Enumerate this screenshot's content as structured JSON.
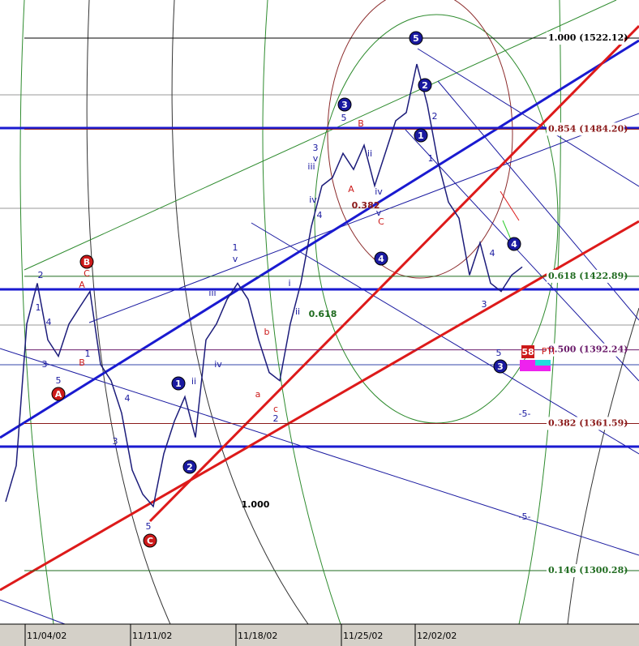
{
  "chart_data": {
    "type": "line",
    "color": "#1c1c7a",
    "ylim": [
      1278,
      1538
    ],
    "categories": [
      null,
      null,
      "11/04/02",
      null,
      null,
      null,
      null,
      null,
      null,
      null,
      null,
      null,
      "11/11/02",
      null,
      null,
      null,
      null,
      null,
      null,
      null,
      null,
      null,
      "11/18/02",
      null,
      null,
      null,
      null,
      null,
      null,
      null,
      null,
      null,
      "11/25/02",
      null,
      null,
      null,
      null,
      null,
      null,
      "12/02/02",
      null,
      null,
      null,
      null,
      null,
      null,
      null,
      null,
      null,
      null,
      null,
      null,
      null,
      null,
      null,
      null,
      null,
      null,
      null,
      null
    ],
    "values": [
      1329,
      1344,
      1403,
      1420,
      1396.4,
      1389.6,
      1403,
      1409.9,
      1416.6,
      1386.2,
      1379.4,
      1365.9,
      1342.2,
      1332.1,
      1327,
      1349,
      1362.5,
      1372.7,
      1355.8,
      1396.4,
      1403.1,
      1413.3,
      1420,
      1413.3,
      1396.4,
      1382.8,
      1379.4,
      1403.1,
      1420,
      1443.7,
      1460.6,
      1464,
      1474.1,
      1467.4,
      1477.5,
      1460.6,
      1474.1,
      1487.7,
      1491.1,
      1511.3,
      1494.4,
      1470.8,
      1453.8,
      1447.1,
      1423.4,
      1436.9,
      1420,
      1416.6,
      1423.4,
      1426.8,
      null,
      null,
      null,
      null,
      null,
      null,
      null,
      null,
      null,
      null
    ],
    "fib_levels": [
      {
        "value": 1522.12,
        "label": "1.000 (1522.12)",
        "color": "#000000"
      },
      {
        "value": 1484.2,
        "label": "0.854 (1484.20)",
        "color": "#8b1a1a"
      },
      {
        "value": 1422.89,
        "label": "0.618 (1422.89)",
        "color": "#1f6b1f"
      },
      {
        "value": 1392.24,
        "label": "0.500 (1392.24)",
        "color": "#6a1a6a"
      },
      {
        "value": 1361.59,
        "label": "0.382 (1361.59)",
        "color": "#8b1a1a"
      },
      {
        "value": 1300.28,
        "label": "0.146 (1300.28)",
        "color": "#1f6b1f"
      }
    ],
    "wave_labels": [
      {
        "text": "5",
        "color": "#1a1aa0",
        "circle": true
      },
      {
        "text": "2",
        "color": "#1a1aa0",
        "circle": true
      },
      {
        "text": "3",
        "color": "#1a1aa0",
        "circle": true
      },
      {
        "text": "1",
        "color": "#1a1aa0",
        "circle": true
      },
      {
        "text": "4",
        "color": "#1a1aa0",
        "circle": true
      },
      {
        "text": "4",
        "color": "#1a1aa0",
        "circle": true
      },
      {
        "text": "3",
        "color": "#1a1aa0",
        "circle": true
      },
      {
        "text": "1",
        "color": "#1a1aa0",
        "circle": true
      },
      {
        "text": "2",
        "color": "#1a1aa0",
        "circle": true
      },
      {
        "text": "B",
        "color": "#cc1a1a",
        "circle": true
      },
      {
        "text": "A",
        "color": "#cc1a1a",
        "circle": true
      },
      {
        "text": "C",
        "color": "#cc1a1a",
        "circle": true
      },
      {
        "text": "58",
        "color": "#cc1a1a",
        "circle": false
      },
      {
        "text": "PTI",
        "color": "#cc1a1a",
        "circle": false
      },
      {
        "text": "5",
        "color": "#1a1aa0",
        "circle": false
      },
      {
        "text": "3",
        "color": "#1a1aa0",
        "circle": false
      },
      {
        "text": "v",
        "color": "#1a1aa0",
        "circle": false
      },
      {
        "text": "iii",
        "color": "#1a1aa0",
        "circle": false
      },
      {
        "text": "iv",
        "color": "#1a1aa0",
        "circle": false
      },
      {
        "text": "1",
        "color": "#1a1aa0",
        "circle": false
      },
      {
        "text": "v",
        "color": "#1a1aa0",
        "circle": false
      },
      {
        "text": "iii",
        "color": "#1a1aa0",
        "circle": false
      },
      {
        "text": "iv",
        "color": "#1a1aa0",
        "circle": false
      },
      {
        "text": "ii",
        "color": "#1a1aa0",
        "circle": false
      },
      {
        "text": "i",
        "color": "#1a1aa0",
        "circle": false
      },
      {
        "text": "ii",
        "color": "#1a1aa0",
        "circle": false
      },
      {
        "text": "3",
        "color": "#1a1aa0",
        "circle": false
      },
      {
        "text": "4",
        "color": "#1a1aa0",
        "circle": false
      },
      {
        "text": "5",
        "color": "#1a1aa0",
        "circle": false
      },
      {
        "text": "5",
        "color": "#1a1aa0",
        "circle": false
      },
      {
        "text": "3",
        "color": "#1a1aa0",
        "circle": false
      },
      {
        "text": "4",
        "color": "#1a1aa0",
        "circle": false
      },
      {
        "text": "1",
        "color": "#1a1aa0",
        "circle": false
      },
      {
        "text": "2",
        "color": "#1a1aa0",
        "circle": false
      },
      {
        "text": "1",
        "color": "#1a1aa0",
        "circle": false
      },
      {
        "text": "ii",
        "color": "#1a1aa0",
        "circle": false
      },
      {
        "text": "iv",
        "color": "#1a1aa0",
        "circle": false
      },
      {
        "text": "v",
        "color": "#1a1aa0",
        "circle": false
      },
      {
        "text": "1",
        "color": "#1a1aa0",
        "circle": false
      },
      {
        "text": "2",
        "color": "#1a1aa0",
        "circle": false
      },
      {
        "text": "4",
        "color": "#1a1aa0",
        "circle": false
      },
      {
        "text": "3",
        "color": "#1a1aa0",
        "circle": false
      },
      {
        "text": "5",
        "color": "#1a1aa0",
        "circle": false
      },
      {
        "text": "4",
        "color": "#1a1aa0",
        "circle": false
      },
      {
        "text": "A",
        "color": "#cc1a1a",
        "circle": false
      },
      {
        "text": "B",
        "color": "#cc1a1a",
        "circle": false
      },
      {
        "text": "C",
        "color": "#cc1a1a",
        "circle": false
      },
      {
        "text": "A",
        "color": "#cc1a1a",
        "circle": false
      },
      {
        "text": "C",
        "color": "#cc1a1a",
        "circle": false
      },
      {
        "text": "B",
        "color": "#cc1a1a",
        "circle": false
      },
      {
        "text": "a",
        "color": "#cc1a1a",
        "circle": false
      },
      {
        "text": "b",
        "color": "#cc1a1a",
        "circle": false
      },
      {
        "text": "c",
        "color": "#cc1a1a",
        "circle": false
      },
      {
        "text": "2",
        "color": "#1a1aa0",
        "circle": false
      },
      {
        "text": "0.618",
        "color": "#1f6b1f",
        "circle": false
      },
      {
        "text": "0.382",
        "color": "#8b1a1a",
        "circle": false
      },
      {
        "text": "1.000",
        "color": "#000000",
        "circle": false
      },
      {
        "text": "-5-",
        "color": "#1a1aa0",
        "circle": false
      },
      {
        "text": "-5-",
        "color": "#1a1aa0",
        "circle": false
      }
    ]
  }
}
